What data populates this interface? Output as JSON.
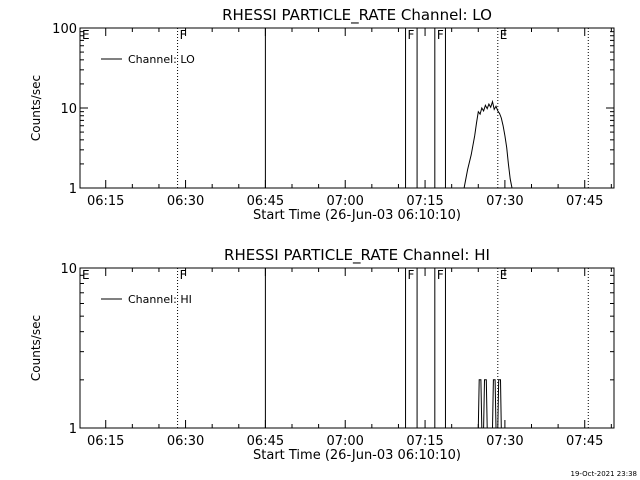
{
  "footer": {
    "timestamp": "19-Oct-2021 23:38"
  },
  "chart_data": [
    {
      "type": "line",
      "title": "RHESSI PARTICLE_RATE Channel: LO",
      "xlabel": "Start Time (26-Jun-03 06:10:10)",
      "ylabel": "Counts/sec",
      "yscale": "log",
      "xlim": [
        "06:10:10",
        "07:50:30"
      ],
      "ylim": [
        1,
        100
      ],
      "x_ticks": [
        "06:15",
        "06:30",
        "06:45",
        "07:00",
        "07:15",
        "07:30",
        "07:45"
      ],
      "y_ticks": [
        "1",
        "10",
        "100"
      ],
      "legend": {
        "label": "Channel: LO",
        "placement": "top-left"
      },
      "markers": [
        {
          "time": "06:10:10",
          "label": "E",
          "style": "none"
        },
        {
          "time": "06:28:30",
          "label": "F",
          "style": "dotted"
        },
        {
          "time": "06:45:00",
          "label": "",
          "style": "solid"
        },
        {
          "time": "07:11:20",
          "label": "F",
          "style": "solid"
        },
        {
          "time": "07:13:30",
          "label": "",
          "style": "solid"
        },
        {
          "time": "07:16:50",
          "label": "F",
          "style": "solid"
        },
        {
          "time": "07:18:50",
          "label": "",
          "style": "solid"
        },
        {
          "time": "07:28:40",
          "label": "E",
          "style": "dotted"
        },
        {
          "time": "07:45:40",
          "label": "",
          "style": "dotted"
        }
      ],
      "series": [
        {
          "name": "Channel: LO",
          "x": [
            "07:22:20",
            "07:23:00",
            "07:23:40",
            "07:24:20",
            "07:24:40",
            "07:25:00",
            "07:25:20",
            "07:25:40",
            "07:26:00",
            "07:26:20",
            "07:26:40",
            "07:27:00",
            "07:27:20",
            "07:27:40",
            "07:28:00",
            "07:28:20",
            "07:28:40",
            "07:29:00",
            "07:29:20",
            "07:29:40",
            "07:30:00",
            "07:30:20",
            "07:30:40",
            "07:31:00",
            "07:31:20"
          ],
          "y": [
            1.0,
            1.7,
            2.6,
            4.5,
            6.5,
            9,
            8.4,
            10,
            9.2,
            10.8,
            9.8,
            11.2,
            10.2,
            12,
            9.6,
            10.5,
            9.2,
            8.5,
            7.5,
            6.0,
            4.5,
            3.2,
            2.0,
            1.3,
            1.0
          ]
        }
      ]
    },
    {
      "type": "line",
      "title": "RHESSI PARTICLE_RATE Channel: HI",
      "xlabel": "Start Time (26-Jun-03 06:10:10)",
      "ylabel": "Counts/sec",
      "yscale": "log",
      "xlim": [
        "06:10:10",
        "07:50:30"
      ],
      "ylim": [
        1,
        10
      ],
      "x_ticks": [
        "06:15",
        "06:30",
        "06:45",
        "07:00",
        "07:15",
        "07:30",
        "07:45"
      ],
      "y_ticks": [
        "1",
        "10"
      ],
      "legend": {
        "label": "Channel: HI",
        "placement": "top-left"
      },
      "markers": [
        {
          "time": "06:10:10",
          "label": "E",
          "style": "none"
        },
        {
          "time": "06:28:30",
          "label": "F",
          "style": "dotted"
        },
        {
          "time": "06:45:00",
          "label": "",
          "style": "solid"
        },
        {
          "time": "07:11:20",
          "label": "F",
          "style": "solid"
        },
        {
          "time": "07:13:30",
          "label": "",
          "style": "solid"
        },
        {
          "time": "07:16:50",
          "label": "F",
          "style": "solid"
        },
        {
          "time": "07:18:50",
          "label": "",
          "style": "solid"
        },
        {
          "time": "07:28:40",
          "label": "E",
          "style": "dotted"
        },
        {
          "time": "07:45:40",
          "label": "",
          "style": "dotted"
        }
      ],
      "series": [
        {
          "name": "Channel: HI",
          "x": [
            "07:25:00",
            "07:25:10",
            "07:25:30",
            "07:25:40",
            "07:26:00",
            "07:26:10",
            "07:26:30",
            "07:26:40",
            "07:27:40",
            "07:27:50",
            "07:28:10",
            "07:28:20",
            "07:28:40",
            "07:28:50",
            "07:29:10",
            "07:29:20"
          ],
          "y": [
            1,
            2,
            2,
            1,
            1,
            2,
            2,
            1,
            1,
            2,
            2,
            1,
            1,
            2,
            2,
            1
          ]
        }
      ]
    }
  ]
}
